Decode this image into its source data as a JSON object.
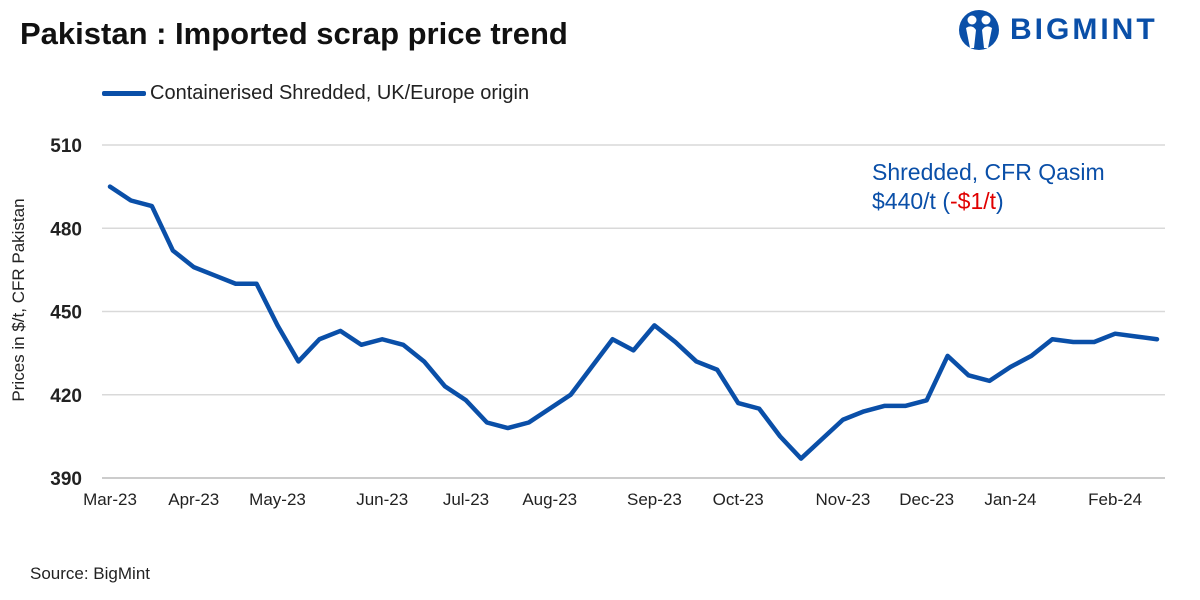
{
  "title": "Pakistan : Imported scrap price trend",
  "logo": {
    "text": "BIGMINT",
    "color": "#0a4fa8"
  },
  "source": "Source: BigMint",
  "annotation": {
    "line1": "Shredded, CFR Qasim",
    "price": "$440/t",
    "open": " (",
    "change": "-$1/t",
    "close": ")",
    "change_color": "#e00000"
  },
  "chart_data": {
    "type": "line",
    "ylabel": "Prices in $/t, CFR Pakistan",
    "ylim": [
      390,
      510
    ],
    "yticks": [
      390,
      420,
      450,
      480,
      510
    ],
    "grid": true,
    "legend_position": "top-left",
    "x_frequency": "weekly",
    "xtick_labels": [
      {
        "label": "Mar-23",
        "index": 0
      },
      {
        "label": "Apr-23",
        "index": 4
      },
      {
        "label": "May-23",
        "index": 8
      },
      {
        "label": "Jun-23",
        "index": 13
      },
      {
        "label": "Jul-23",
        "index": 17
      },
      {
        "label": "Aug-23",
        "index": 21
      },
      {
        "label": "Sep-23",
        "index": 26
      },
      {
        "label": "Oct-23",
        "index": 30
      },
      {
        "label": "Nov-23",
        "index": 35
      },
      {
        "label": "Dec-23",
        "index": 39
      },
      {
        "label": "Jan-24",
        "index": 43
      },
      {
        "label": "Feb-24",
        "index": 48
      }
    ],
    "series": [
      {
        "name": "Containerised Shredded, UK/Europe origin",
        "color": "#0a4fa8",
        "values": [
          495,
          490,
          488,
          472,
          466,
          463,
          460,
          460,
          445,
          432,
          440,
          443,
          438,
          440,
          438,
          432,
          423,
          418,
          410,
          408,
          410,
          415,
          420,
          430,
          440,
          436,
          445,
          439,
          432,
          429,
          417,
          415,
          405,
          397,
          404,
          411,
          414,
          416,
          416,
          418,
          434,
          427,
          425,
          430,
          434,
          440,
          439,
          439,
          442,
          441,
          440
        ]
      }
    ]
  }
}
